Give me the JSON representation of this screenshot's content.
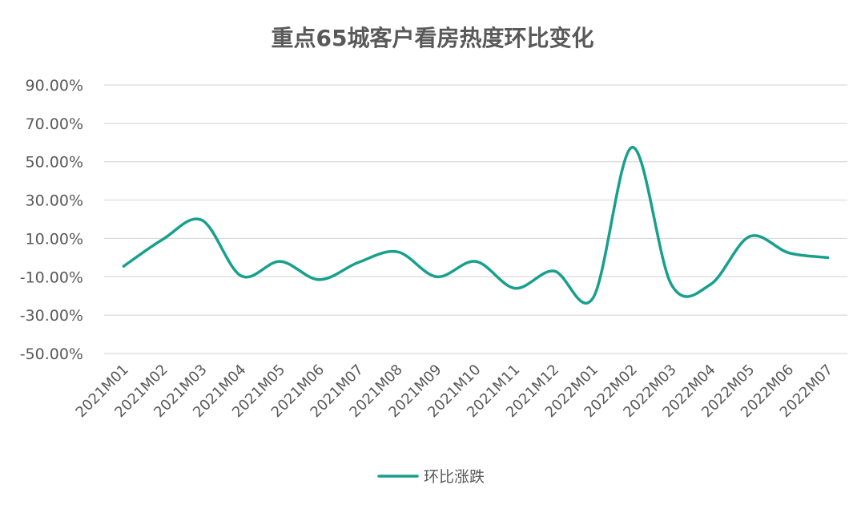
{
  "chart_data": {
    "type": "line",
    "title": "重点65城客户看房热度环比变化",
    "xlabel": "",
    "ylabel": "",
    "categories": [
      "2021M01",
      "2021M02",
      "2021M03",
      "2021M04",
      "2021M05",
      "2021M06",
      "2021M07",
      "2021M08",
      "2021M09",
      "2021M10",
      "2021M11",
      "2021M12",
      "2022M01",
      "2022M02",
      "2022M03",
      "2022M04",
      "2022M05",
      "2022M06",
      "2022M07"
    ],
    "series": [
      {
        "name": "环比涨跌",
        "color": "#17a08c",
        "values": [
          -4.5,
          9.5,
          19.5,
          -9.5,
          -2.0,
          -11.5,
          -2.5,
          3.0,
          -10.0,
          -2.0,
          -16.0,
          -7.0,
          -21.0,
          57.5,
          -14.0,
          -14.0,
          11.0,
          2.5,
          0.0
        ]
      }
    ],
    "ylim": [
      -50,
      90
    ],
    "y_ticks": [
      90,
      70,
      50,
      30,
      10,
      -10,
      -30,
      -50
    ],
    "y_tick_labels": [
      "90.00%",
      "70.00%",
      "50.00%",
      "30.00%",
      "10.00%",
      "-10.00%",
      "-30.00%",
      "-50.00%"
    ],
    "grid": true,
    "smooth": true,
    "legend_position": "bottom-center",
    "gridline_color": "#d9d9d9",
    "text_color": "#595959"
  }
}
